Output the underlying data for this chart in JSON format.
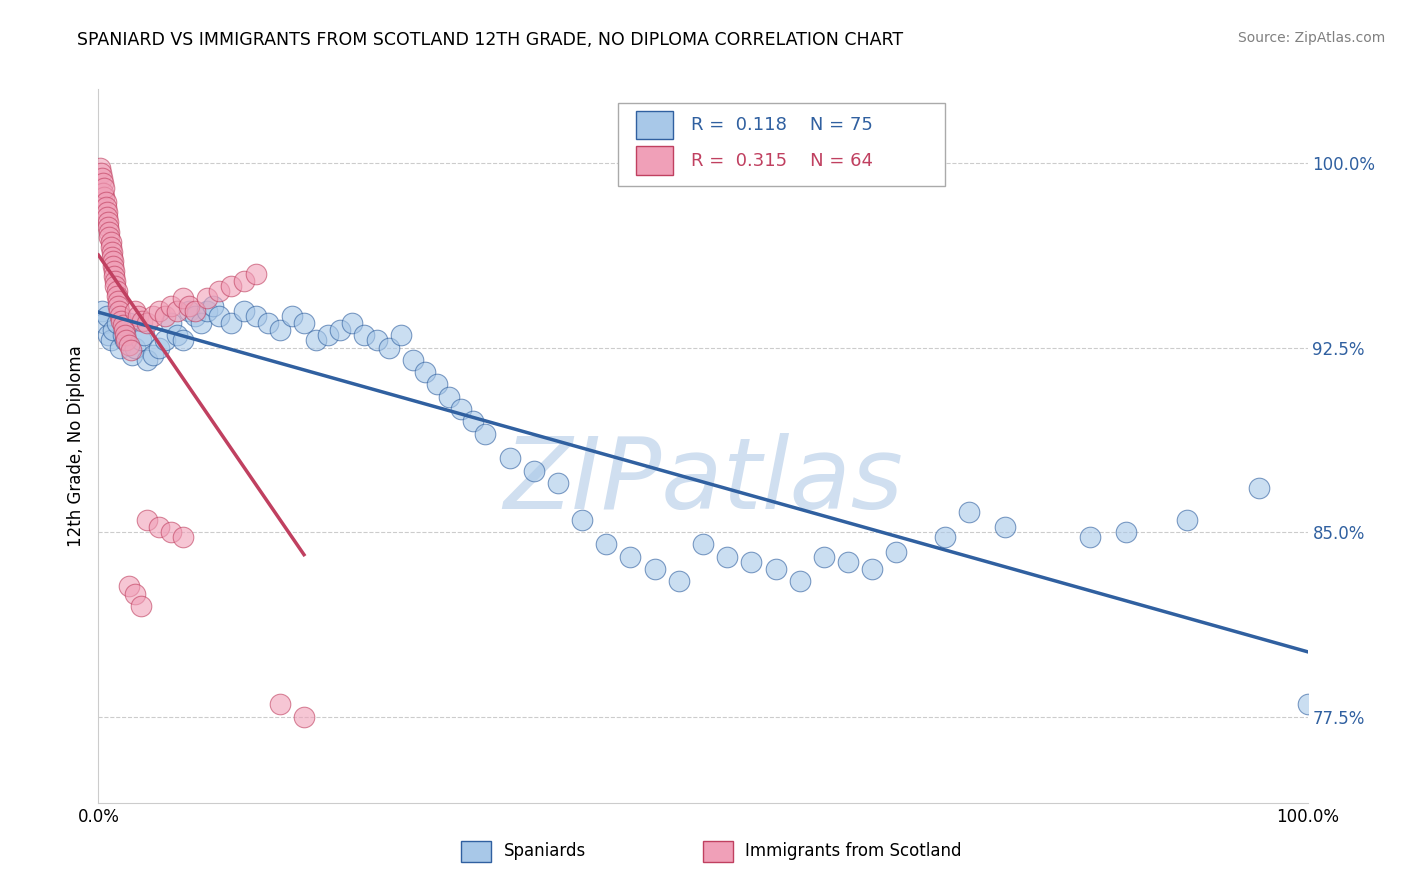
{
  "title": "SPANIARD VS IMMIGRANTS FROM SCOTLAND 12TH GRADE, NO DIPLOMA CORRELATION CHART",
  "source": "Source: ZipAtlas.com",
  "ylabel": "12th Grade, No Diploma",
  "xlim": [
    0.0,
    1.0
  ],
  "ylim": [
    0.74,
    1.03
  ],
  "blue_R": 0.118,
  "blue_N": 75,
  "pink_R": 0.315,
  "pink_N": 64,
  "blue_color": "#a8c8e8",
  "pink_color": "#f0a0b8",
  "trend_blue": "#3060a0",
  "trend_pink": "#c04060",
  "watermark": "ZIPatlas",
  "watermark_color": "#d0dff0",
  "legend_label_blue": "Spaniards",
  "legend_label_pink": "Immigrants from Scotland",
  "ytick_positions": [
    0.775,
    0.85,
    0.925,
    1.0
  ],
  "ytick_labels": [
    "77.5%",
    "85.0%",
    "92.5%",
    "100.0%"
  ],
  "blue_x": [
    0.003,
    0.005,
    0.007,
    0.008,
    0.01,
    0.012,
    0.015,
    0.018,
    0.02,
    0.022,
    0.025,
    0.028,
    0.03,
    0.035,
    0.038,
    0.04,
    0.045,
    0.05,
    0.055,
    0.06,
    0.065,
    0.07,
    0.075,
    0.08,
    0.085,
    0.09,
    0.095,
    0.1,
    0.11,
    0.12,
    0.13,
    0.14,
    0.15,
    0.16,
    0.17,
    0.18,
    0.19,
    0.2,
    0.21,
    0.22,
    0.23,
    0.24,
    0.25,
    0.26,
    0.27,
    0.28,
    0.29,
    0.3,
    0.31,
    0.32,
    0.34,
    0.36,
    0.38,
    0.4,
    0.42,
    0.44,
    0.46,
    0.48,
    0.5,
    0.52,
    0.54,
    0.56,
    0.58,
    0.6,
    0.62,
    0.64,
    0.66,
    0.7,
    0.72,
    0.75,
    0.82,
    0.85,
    0.9,
    0.96,
    1.0
  ],
  "blue_y": [
    0.94,
    0.935,
    0.938,
    0.93,
    0.928,
    0.932,
    0.935,
    0.925,
    0.93,
    0.928,
    0.935,
    0.922,
    0.925,
    0.928,
    0.93,
    0.92,
    0.922,
    0.925,
    0.928,
    0.935,
    0.93,
    0.928,
    0.94,
    0.938,
    0.935,
    0.94,
    0.942,
    0.938,
    0.935,
    0.94,
    0.938,
    0.935,
    0.932,
    0.938,
    0.935,
    0.928,
    0.93,
    0.932,
    0.935,
    0.93,
    0.928,
    0.925,
    0.93,
    0.92,
    0.915,
    0.91,
    0.905,
    0.9,
    0.895,
    0.89,
    0.88,
    0.875,
    0.87,
    0.855,
    0.845,
    0.84,
    0.835,
    0.83,
    0.845,
    0.84,
    0.838,
    0.835,
    0.83,
    0.84,
    0.838,
    0.835,
    0.842,
    0.848,
    0.858,
    0.852,
    0.848,
    0.85,
    0.855,
    0.868,
    0.78
  ],
  "pink_x": [
    0.001,
    0.002,
    0.003,
    0.004,
    0.004,
    0.005,
    0.005,
    0.006,
    0.006,
    0.007,
    0.007,
    0.008,
    0.008,
    0.009,
    0.009,
    0.01,
    0.01,
    0.011,
    0.011,
    0.012,
    0.012,
    0.013,
    0.013,
    0.014,
    0.014,
    0.015,
    0.015,
    0.016,
    0.016,
    0.017,
    0.018,
    0.019,
    0.02,
    0.021,
    0.022,
    0.023,
    0.025,
    0.027,
    0.03,
    0.033,
    0.036,
    0.04,
    0.045,
    0.05,
    0.055,
    0.06,
    0.065,
    0.07,
    0.075,
    0.08,
    0.09,
    0.1,
    0.11,
    0.12,
    0.13,
    0.04,
    0.05,
    0.06,
    0.07,
    0.025,
    0.03,
    0.035,
    0.15,
    0.17
  ],
  "pink_y": [
    0.998,
    0.996,
    0.994,
    0.992,
    0.988,
    0.986,
    0.99,
    0.984,
    0.982,
    0.98,
    0.978,
    0.976,
    0.974,
    0.972,
    0.97,
    0.968,
    0.966,
    0.964,
    0.962,
    0.96,
    0.958,
    0.956,
    0.954,
    0.952,
    0.95,
    0.948,
    0.946,
    0.944,
    0.942,
    0.94,
    0.938,
    0.936,
    0.934,
    0.932,
    0.93,
    0.928,
    0.926,
    0.924,
    0.94,
    0.938,
    0.936,
    0.935,
    0.938,
    0.94,
    0.938,
    0.942,
    0.94,
    0.945,
    0.942,
    0.94,
    0.945,
    0.948,
    0.95,
    0.952,
    0.955,
    0.855,
    0.852,
    0.85,
    0.848,
    0.828,
    0.825,
    0.82,
    0.78,
    0.775
  ]
}
